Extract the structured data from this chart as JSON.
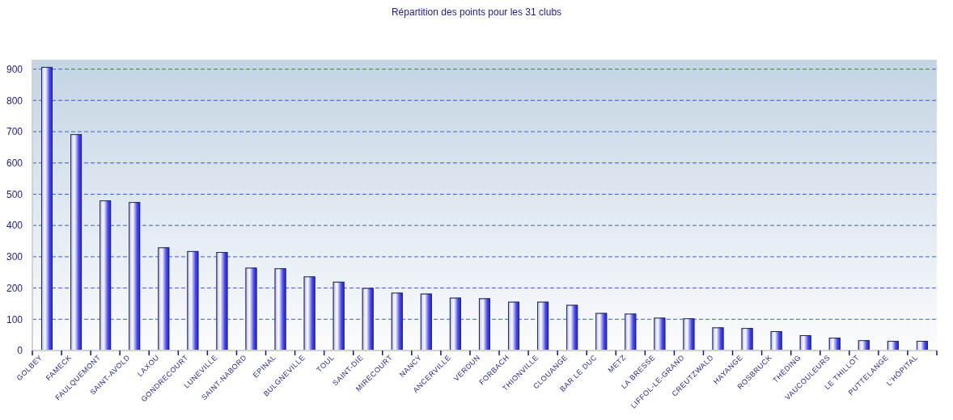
{
  "chart_data": {
    "type": "bar",
    "title": "Répartition des points pour les 31 clubs",
    "categories": [
      "GOLBEY",
      "FAMECK",
      "FAULQUEMONT",
      "SAINT-AVOLD",
      "LAXOU",
      "GONDRECOURT",
      "LUNEVILLE",
      "SAINT-NABORD",
      "EPINAL",
      "BULGNEVILLE",
      "TOUL",
      "SAINT-DIE",
      "MIRECOURT",
      "NANCY",
      "ANCERVILLE",
      "VERDUN",
      "FORBACH",
      "THIONVILLE",
      "CLOUANGE",
      "BAR LE DUC",
      "METZ",
      "LA BRESSE",
      "LIFFOL-LE-GRAND",
      "CREUTZWALD",
      "HAYANGE",
      "ROSBRUCK",
      "THÉDING",
      "VAUCOULEURS",
      "LE THILLOT",
      "PUTTELANGE",
      "L'HÔPITAL"
    ],
    "values": [
      907,
      692,
      480,
      475,
      330,
      318,
      315,
      265,
      263,
      237,
      220,
      200,
      185,
      182,
      169,
      167,
      156,
      156,
      146,
      120,
      118,
      105,
      103,
      74,
      72,
      62,
      49,
      41,
      33,
      31,
      31
    ],
    "color": "#2222ee",
    "ylim": [
      0,
      930
    ],
    "yticks": [
      0,
      100,
      200,
      300,
      400,
      500,
      600,
      700,
      800,
      900
    ],
    "grid": "y"
  }
}
